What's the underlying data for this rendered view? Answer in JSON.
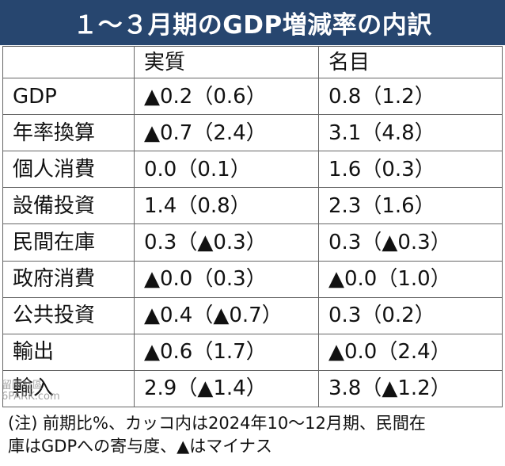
{
  "title": "１～３月期のGDP増減率の内訳",
  "table": {
    "headers": [
      "",
      "実質",
      "名目"
    ],
    "rows": [
      {
        "label": "GDP",
        "real": "▲0.2（0.6）",
        "nominal": "0.8（1.2）"
      },
      {
        "label": "年率換算",
        "real": "▲0.7（2.4）",
        "nominal": "3.1（4.8）"
      },
      {
        "label": "個人消費",
        "real": "0.0（0.1）",
        "nominal": "1.6（0.3）"
      },
      {
        "label": "設備投資",
        "real": "1.4（0.8）",
        "nominal": "2.3（1.6）"
      },
      {
        "label": "民間在庫",
        "real": "0.3（▲0.3）",
        "nominal": "0.3（▲0.3）"
      },
      {
        "label": "政府消費",
        "real": "▲0.0（0.3）",
        "nominal": "▲0.0（1.0）"
      },
      {
        "label": "公共投資",
        "real": "▲0.4（▲0.7）",
        "nominal": "0.3（0.2）"
      },
      {
        "label": "輸出",
        "real": "▲0.6（1.7）",
        "nominal": "▲0.0（2.4）"
      },
      {
        "label": "輸入",
        "real": "2.9（▲1.4）",
        "nominal": "3.8（▲1.2）"
      }
    ]
  },
  "note": {
    "line1": "(注) 前期比%、カッコ内は2024年10～12月期、民間在",
    "line2": "庫はGDPへの寄与度、▲はマイナス"
  },
  "watermark": {
    "line1": "留園社區",
    "line2": "6PARK.com"
  }
}
